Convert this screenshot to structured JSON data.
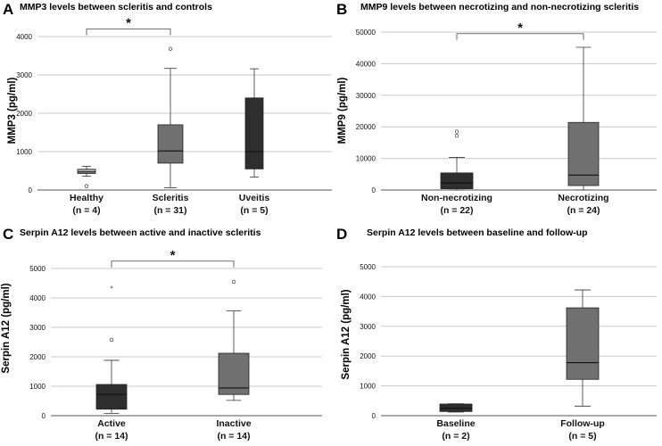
{
  "colors": {
    "grid": "#c8c8c8",
    "axis": "#555555",
    "text": "#111111",
    "light": "#a9a9a9",
    "mid": "#707070",
    "dark": "#2e2e2e"
  },
  "chart_data": [
    {
      "type": "boxplot",
      "letter": "A",
      "title": "MMP3 levels between scleritis and controls",
      "ylabel": "MMP3 (pg/ml)",
      "ylim": [
        0,
        4000
      ],
      "yticks": [
        0,
        1000,
        2000,
        3000,
        4000
      ],
      "categories": [
        {
          "name": "Healthy",
          "n": "(n = 4)",
          "color": "light",
          "min": 360,
          "q1": 430,
          "median": 470,
          "q3": 540,
          "max": 620,
          "outliers": [
            100
          ],
          "extremes": []
        },
        {
          "name": "Scleritis",
          "n": "(n = 31)",
          "color": "mid",
          "min": 60,
          "q1": 700,
          "median": 1020,
          "q3": 1700,
          "max": 3170,
          "outliers": [
            3680
          ],
          "extremes": []
        },
        {
          "name": "Uveitis",
          "n": "(n = 5)",
          "color": "dark",
          "min": 340,
          "q1": 550,
          "median": 1000,
          "q3": 2400,
          "max": 3160,
          "outliers": [],
          "extremes": []
        }
      ],
      "significance": {
        "from": 0,
        "to": 1,
        "y": 4200,
        "label": "*"
      }
    },
    {
      "type": "boxplot",
      "letter": "B",
      "title": "MMP9 levels between necrotizing and non-necrotizing scleritis",
      "ylabel": "MMP9 (pg/ml)",
      "ylim": [
        0,
        50000
      ],
      "yticks": [
        0,
        10000,
        20000,
        30000,
        40000,
        50000
      ],
      "categories": [
        {
          "name": "Non-necrotizing",
          "n": "(n = 22)",
          "color": "dark",
          "min": 0,
          "q1": 400,
          "median": 2200,
          "q3": 5400,
          "max": 10300,
          "outliers": [
            17200,
            18500
          ],
          "extremes": []
        },
        {
          "name": "Necrotizing",
          "n": "(n = 24)",
          "color": "mid",
          "min": 0,
          "q1": 1400,
          "median": 4700,
          "q3": 21400,
          "max": 45200,
          "outliers": [],
          "extremes": []
        }
      ],
      "significance": {
        "from": 0,
        "to": 1,
        "y": 49500,
        "label": "*"
      }
    },
    {
      "type": "boxplot",
      "letter": "C",
      "title": "Serpin A12 levels between active and inactive scleritis",
      "ylabel": "Serpin A12 (pg/ml)",
      "ylim": [
        0,
        5000
      ],
      "yticks": [
        0,
        1000,
        2000,
        3000,
        4000,
        5000
      ],
      "categories": [
        {
          "name": "Active",
          "n": "(n = 14)",
          "color": "dark",
          "min": 80,
          "q1": 220,
          "median": 720,
          "q3": 1060,
          "max": 1880,
          "outliers": [
            2580
          ],
          "extremes": [
            4350
          ]
        },
        {
          "name": "Inactive",
          "n": "(n = 14)",
          "color": "mid",
          "min": 520,
          "q1": 720,
          "median": 940,
          "q3": 2120,
          "max": 3560,
          "outliers": [
            4550
          ],
          "extremes": []
        }
      ],
      "significance": {
        "from": 0,
        "to": 1,
        "y": 5250,
        "label": "*"
      }
    },
    {
      "type": "boxplot",
      "letter": "D",
      "title": "Serpin A12 levels between baseline and follow-up",
      "ylabel": "Serpin A12 (pg/ml)",
      "ylim": [
        0,
        5000
      ],
      "yticks": [
        0,
        1000,
        2000,
        3000,
        4000,
        5000
      ],
      "categories": [
        {
          "name": "Baseline",
          "n": "(n = 2)",
          "color": "dark",
          "min": 120,
          "q1": 140,
          "median": 250,
          "q3": 390,
          "max": 400,
          "outliers": [],
          "extremes": []
        },
        {
          "name": "Follow-up",
          "n": "(n = 5)",
          "color": "mid",
          "min": 320,
          "q1": 1220,
          "median": 1780,
          "q3": 3620,
          "max": 4220,
          "outliers": [],
          "extremes": []
        }
      ],
      "significance": null
    }
  ]
}
